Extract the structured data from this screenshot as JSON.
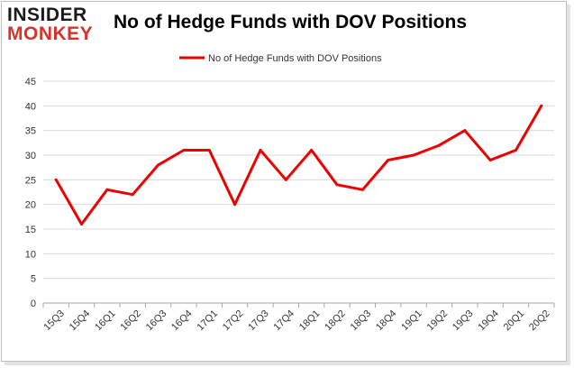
{
  "brand": {
    "logo_line1": "INSIDER",
    "logo_line2": "MONKEY"
  },
  "colors": {
    "series": "#ee0000",
    "grid": "#d9d9d9",
    "axis": "#a6a6a6",
    "logo_dark": "#1a1a1a",
    "logo_accent": "#d6342a"
  },
  "chart_data": {
    "type": "line",
    "title": "No of Hedge Funds with DOV Positions",
    "xlabel": "",
    "ylabel": "",
    "ylim": [
      0,
      45
    ],
    "yticks": [
      0,
      5,
      10,
      15,
      20,
      25,
      30,
      35,
      40,
      45
    ],
    "grid": "horizontal",
    "legend_position": "top-center",
    "categories": [
      "15Q3",
      "15Q4",
      "16Q1",
      "16Q2",
      "16Q3",
      "16Q4",
      "17Q1",
      "17Q2",
      "17Q3",
      "17Q4",
      "18Q1",
      "18Q2",
      "18Q3",
      "18Q4",
      "19Q1",
      "19Q2",
      "19Q3",
      "19Q4",
      "20Q1",
      "20Q2"
    ],
    "series": [
      {
        "name": "No of Hedge Funds with DOV Positions",
        "values": [
          25,
          16,
          23,
          22,
          28,
          31,
          31,
          20,
          31,
          25,
          31,
          24,
          23,
          29,
          30,
          32,
          35,
          29,
          31,
          40
        ]
      }
    ]
  }
}
